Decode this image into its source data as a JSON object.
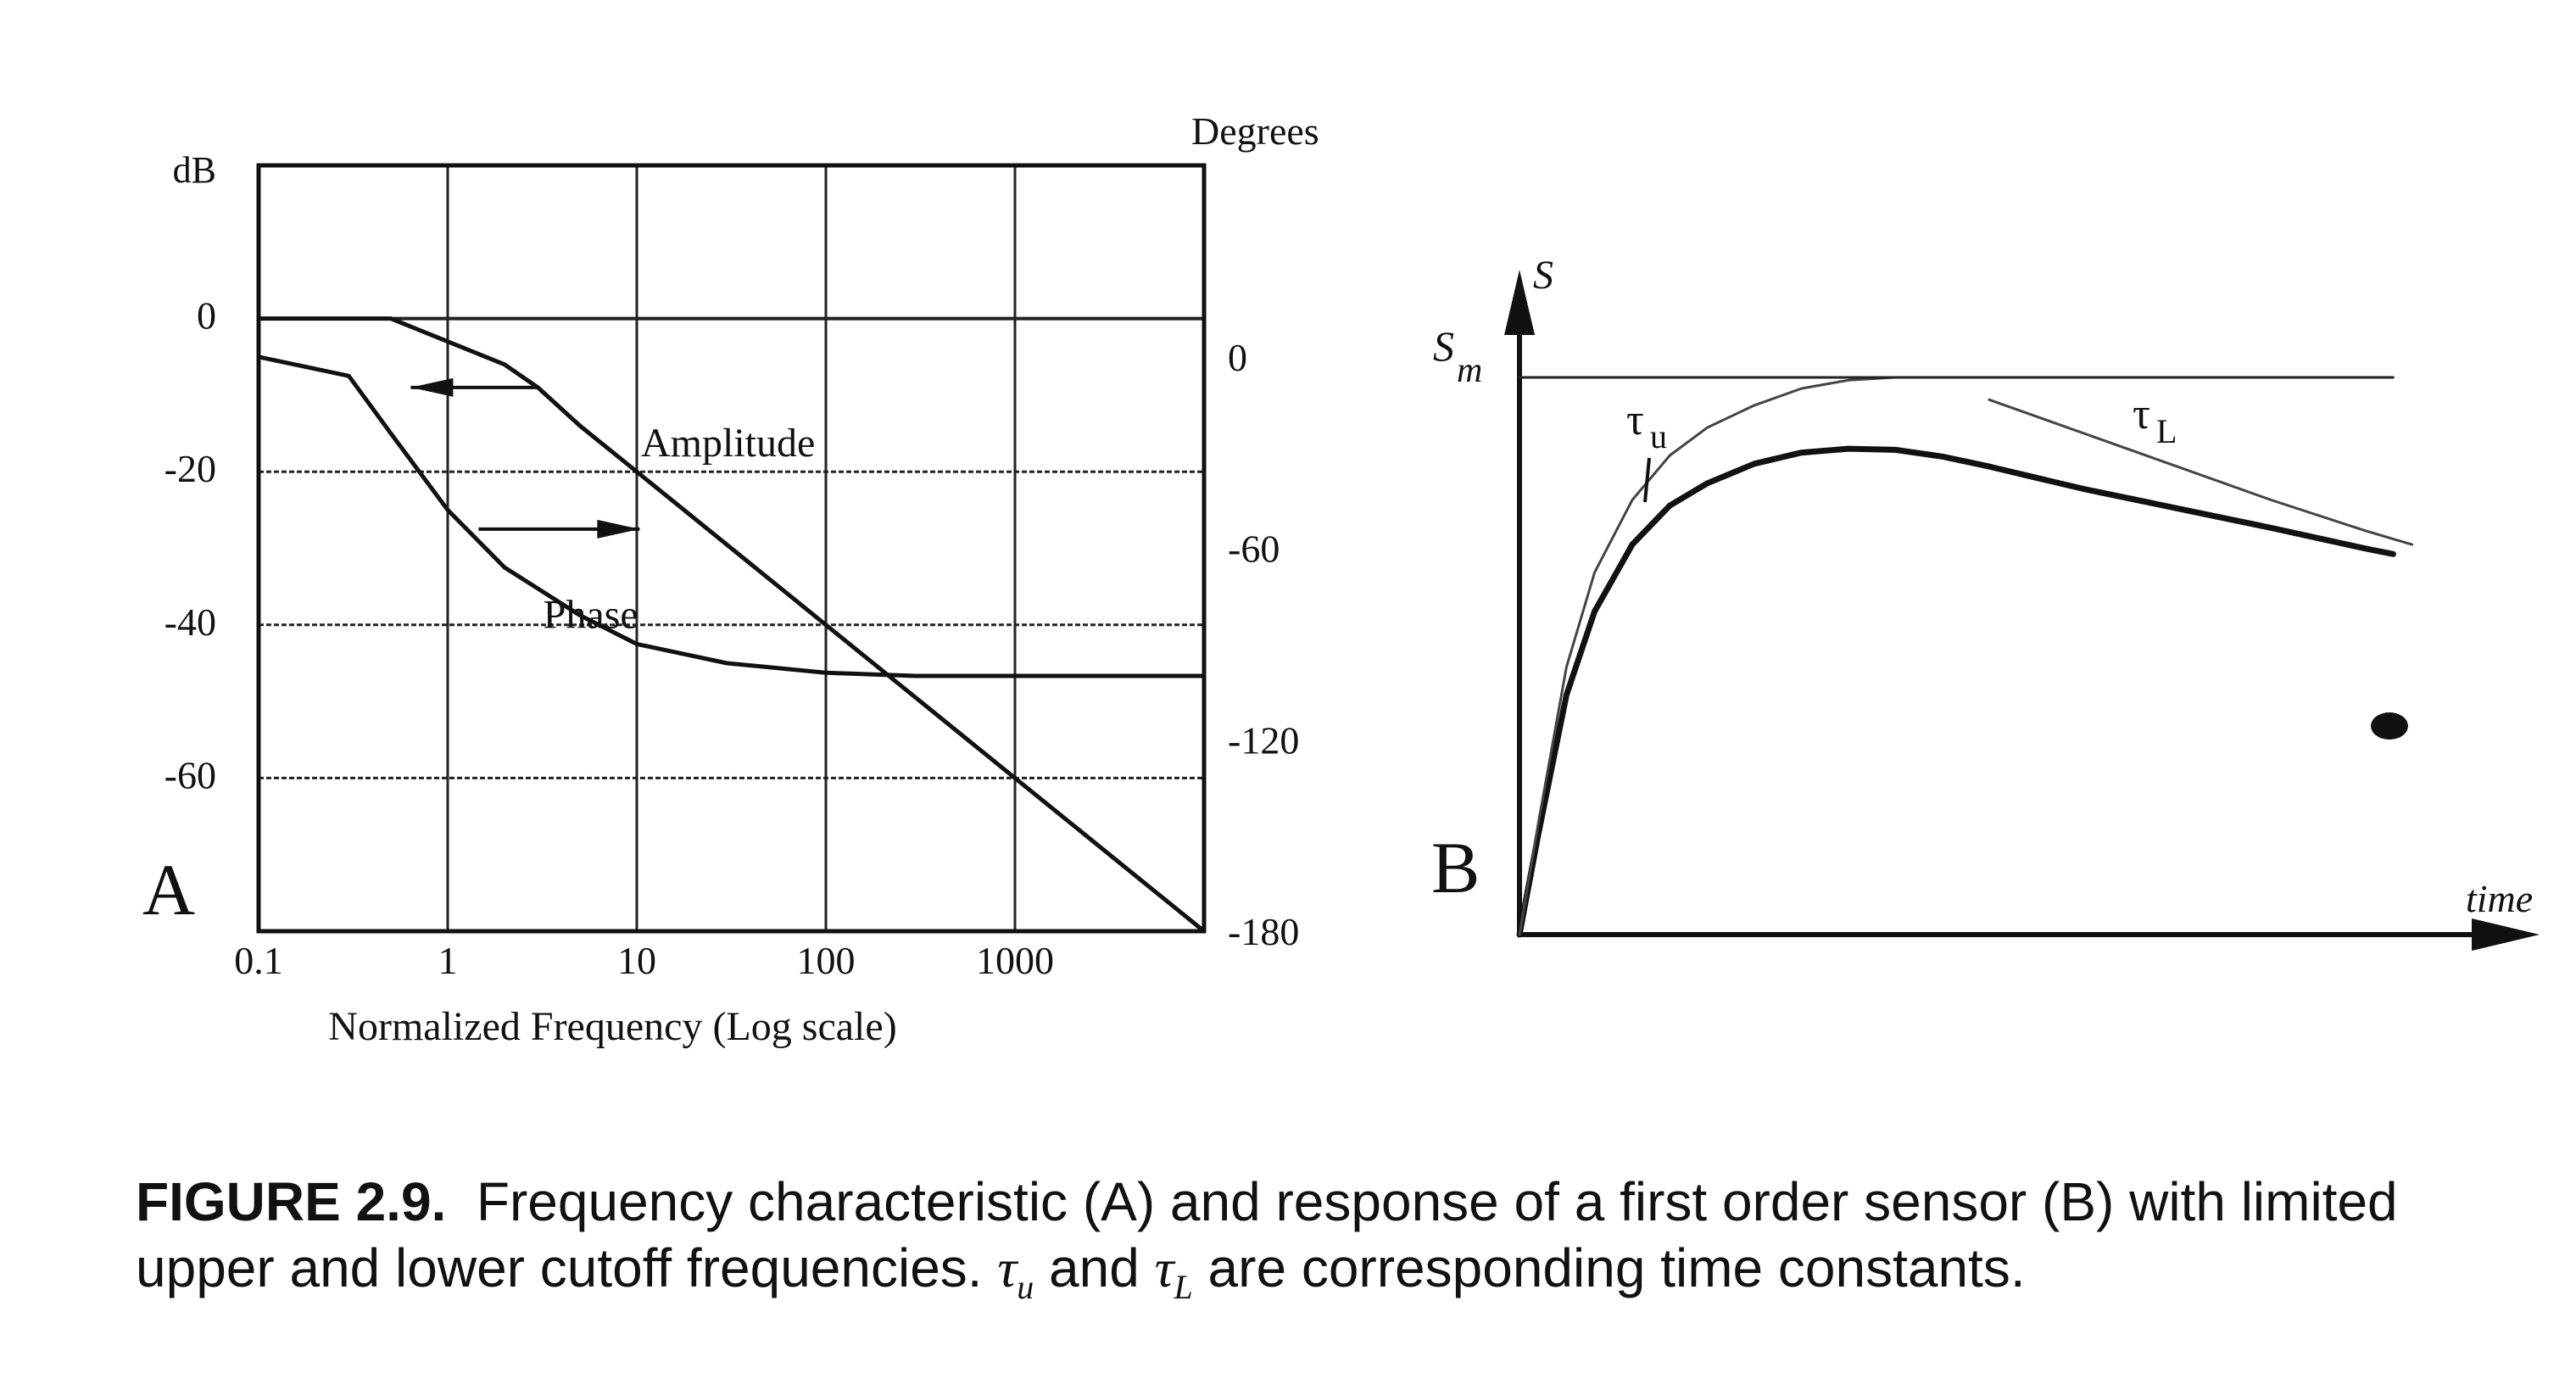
{
  "chart_data": [
    {
      "type": "line",
      "panel_label": "A",
      "xlabel": "Normalized Frequency (Log scale)",
      "x_scale": "log",
      "x_ticks": [
        "0.1",
        "1",
        "10",
        "100",
        "1000"
      ],
      "xlim": [
        0.1,
        10000
      ],
      "y_left_label": "dB",
      "y_left_ticks": [
        "0",
        "-20",
        "-40",
        "-60"
      ],
      "ylim_left": [
        -80,
        20
      ],
      "y_right_label": "Degrees",
      "y_right_ticks": [
        "0",
        "-60",
        "-120",
        "-180"
      ],
      "ylim_right": [
        -180,
        60
      ],
      "grid": true,
      "series": [
        {
          "name": "Amplitude",
          "axis": "left",
          "x": [
            0.1,
            0.5,
            1,
            2,
            3,
            5,
            10,
            100,
            1000,
            10000
          ],
          "y": [
            0,
            0,
            -3,
            -6,
            -9,
            -14,
            -20,
            -40,
            -60,
            -80
          ]
        },
        {
          "name": "Phase",
          "axis": "right",
          "x": [
            0.1,
            0.3,
            0.5,
            1,
            2,
            5,
            10,
            30,
            100,
            300,
            1000,
            10000
          ],
          "y": [
            0,
            -6,
            -24,
            -48,
            -66,
            -81,
            -90,
            -96,
            -99,
            -100,
            -100,
            -100
          ]
        }
      ]
    },
    {
      "type": "line",
      "panel_label": "B",
      "xlabel": "time",
      "ylabel": "S",
      "level_label": "S",
      "level_subscript": "m",
      "annotations": [
        {
          "text": "τ",
          "subscript": "u"
        },
        {
          "text": "τ",
          "subscript": "L"
        }
      ],
      "xlim": [
        0,
        100
      ],
      "ylim": [
        0,
        100
      ],
      "series": [
        {
          "role": "response",
          "x": [
            0,
            2,
            5,
            8,
            12,
            16,
            20,
            25,
            30,
            35,
            40,
            45,
            50,
            55,
            60,
            70,
            80,
            90,
            93
          ],
          "y": [
            0,
            18,
            43,
            58,
            70,
            77,
            81,
            84.5,
            86.5,
            87.2,
            87.0,
            85.8,
            84.0,
            82.0,
            80.0,
            76.5,
            73.0,
            69.3,
            68.3
          ]
        },
        {
          "role": "upper-bound",
          "x": [
            0,
            2,
            5,
            8,
            12,
            16,
            20,
            25,
            30,
            35,
            40,
            45
          ],
          "y": [
            0,
            20,
            48,
            65,
            78,
            86,
            91,
            95,
            98,
            99.5,
            100,
            100
          ]
        },
        {
          "role": "lower-bound",
          "x": [
            50,
            60,
            70,
            80,
            90,
            95
          ],
          "y": [
            96,
            90,
            84,
            78,
            72.5,
            70
          ]
        },
        {
          "role": "maximum-level",
          "x": [
            0,
            93
          ],
          "y": [
            100,
            100
          ]
        }
      ]
    }
  ],
  "caption": {
    "figure_label": "FIGURE 2.9.",
    "line1": "Frequency characteristic (A) and response of a first order sensor (B) with limited",
    "line2_a": "upper and lower cutoff frequencies.",
    "tau": "τ",
    "sub_u": "u",
    "and": "and",
    "sub_l": "L",
    "line2_b": "are corresponding time constants."
  }
}
